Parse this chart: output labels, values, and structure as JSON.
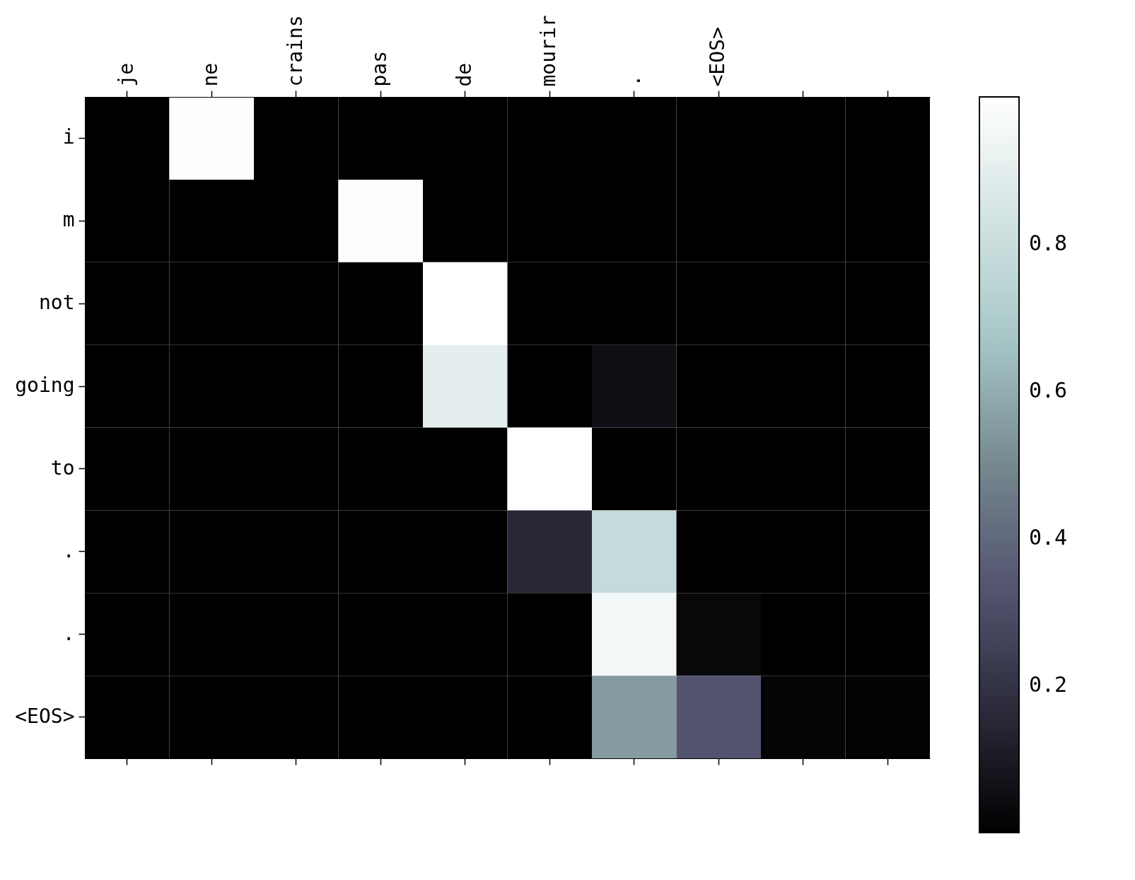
{
  "chart_data": {
    "type": "heatmap",
    "categories": [
      "je",
      "ne",
      "crains",
      "pas",
      "de",
      "mourir",
      ".",
      "<EOS>",
      null,
      null
    ],
    "y_categories": [
      "i",
      "m",
      "not",
      "going",
      "to",
      ".",
      ".",
      "<EOS>"
    ],
    "cells": [
      [
        0,
        0.99,
        0,
        0,
        0,
        0,
        0,
        0,
        0,
        0
      ],
      [
        0,
        0,
        0,
        0.99,
        0,
        0,
        0,
        0,
        0,
        0
      ],
      [
        0,
        0,
        0,
        0,
        1.0,
        0,
        0,
        0,
        0,
        0
      ],
      [
        0,
        0,
        0,
        0,
        0.9,
        0,
        0.06,
        0,
        0,
        0
      ],
      [
        0,
        0,
        0,
        0,
        0,
        1.0,
        0,
        0,
        0,
        0
      ],
      [
        0,
        0,
        0,
        0,
        0,
        0.15,
        0.78,
        0,
        0,
        0
      ],
      [
        0,
        0,
        0,
        0,
        0,
        0,
        0.95,
        0.03,
        0,
        0
      ],
      [
        0,
        0,
        0,
        0,
        0,
        0,
        0.55,
        0.33,
        0.02,
        0.01
      ]
    ],
    "clim": [
      0,
      1
    ],
    "cticks": [
      0.2,
      0.4,
      0.6,
      0.8
    ]
  }
}
